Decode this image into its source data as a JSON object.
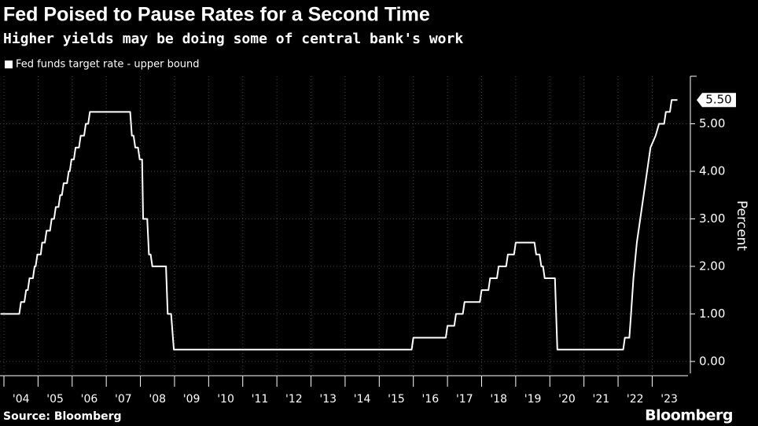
{
  "chart_data": {
    "type": "line",
    "title": "Fed Poised to Pause Rates for a Second Time",
    "subtitle": "Higher yields may be doing some of central bank's work",
    "y_label": "Percent",
    "source": "Source: Bloomberg",
    "brand": "Bloomberg",
    "end_label": "5.50",
    "x": [
      2003.9,
      2004.45,
      2004.5,
      2004.6,
      2004.65,
      2004.7,
      2004.75,
      2004.85,
      2004.9,
      2004.93,
      2004.98,
      2005.08,
      2005.12,
      2005.2,
      2005.25,
      2005.35,
      2005.4,
      2005.47,
      2005.52,
      2005.6,
      2005.65,
      2005.7,
      2005.75,
      2005.85,
      2005.9,
      2005.93,
      2005.98,
      2006.05,
      2006.1,
      2006.2,
      2006.25,
      2006.35,
      2006.4,
      2006.47,
      2006.52,
      2007.7,
      2007.75,
      2007.8,
      2007.85,
      2007.93,
      2007.98,
      2008.05,
      2008.08,
      2008.2,
      2008.25,
      2008.3,
      2008.35,
      2008.75,
      2008.8,
      2008.9,
      2008.98,
      2015.95,
      2016.0,
      2016.95,
      2017.0,
      2017.2,
      2017.25,
      2017.45,
      2017.5,
      2017.95,
      2018.0,
      2018.2,
      2018.25,
      2018.45,
      2018.5,
      2018.72,
      2018.77,
      2018.95,
      2019.0,
      2019.55,
      2019.6,
      2019.7,
      2019.75,
      2019.8,
      2019.85,
      2020.15,
      2020.22,
      2022.15,
      2022.2,
      2022.33,
      2022.38,
      2022.45,
      2022.55,
      2022.7,
      2022.85,
      2022.95,
      2023.1,
      2023.2,
      2023.35,
      2023.4,
      2023.52,
      2023.57,
      2023.74
    ],
    "series": [
      {
        "name": "Fed funds target rate - upper bound",
        "color": "#ffffff",
        "values": [
          1,
          1,
          1.25,
          1.25,
          1.5,
          1.5,
          1.75,
          1.75,
          2,
          2,
          2.25,
          2.25,
          2.5,
          2.5,
          2.75,
          2.75,
          3,
          3,
          3.25,
          3.25,
          3.5,
          3.5,
          3.75,
          3.75,
          4,
          4,
          4.25,
          4.25,
          4.5,
          4.5,
          4.75,
          4.75,
          5,
          5,
          5.25,
          5.25,
          4.75,
          4.75,
          4.5,
          4.5,
          4.25,
          4.25,
          3,
          3,
          2.25,
          2.25,
          2,
          2,
          1,
          1,
          0.25,
          0.25,
          0.5,
          0.5,
          0.75,
          0.75,
          1,
          1,
          1.25,
          1.25,
          1.5,
          1.5,
          1.75,
          1.75,
          2,
          2,
          2.25,
          2.25,
          2.5,
          2.5,
          2.25,
          2.25,
          2,
          2,
          1.75,
          1.75,
          0.25,
          0.25,
          0.5,
          0.5,
          1,
          1.75,
          2.5,
          3.25,
          4,
          4.5,
          4.75,
          5,
          5,
          5.25,
          5.25,
          5.5,
          5.5
        ]
      }
    ],
    "xlim": [
      2003.885,
      2024.05
    ],
    "xticks": [
      {
        "value": 2004,
        "label": "'04"
      },
      {
        "value": 2005,
        "label": "'05"
      },
      {
        "value": 2006,
        "label": "'06"
      },
      {
        "value": 2007,
        "label": "'07"
      },
      {
        "value": 2008,
        "label": "'08"
      },
      {
        "value": 2009,
        "label": "'09"
      },
      {
        "value": 2010,
        "label": "'10"
      },
      {
        "value": 2011,
        "label": "'11"
      },
      {
        "value": 2012,
        "label": "'12"
      },
      {
        "value": 2013,
        "label": "'13"
      },
      {
        "value": 2014,
        "label": "'14"
      },
      {
        "value": 2015,
        "label": "'15"
      },
      {
        "value": 2016,
        "label": "'16"
      },
      {
        "value": 2017,
        "label": "'17"
      },
      {
        "value": 2018,
        "label": "'18"
      },
      {
        "value": 2019,
        "label": "'19"
      },
      {
        "value": 2020,
        "label": "'20"
      },
      {
        "value": 2021,
        "label": "'21"
      },
      {
        "value": 2022,
        "label": "'22"
      },
      {
        "value": 2023,
        "label": "'23"
      }
    ],
    "ylim": [
      -0.25,
      6
    ],
    "yticks": [
      {
        "value": 0,
        "label": "0.00"
      },
      {
        "value": 1,
        "label": "1.00"
      },
      {
        "value": 2,
        "label": "2.00"
      },
      {
        "value": 3,
        "label": "3.00"
      },
      {
        "value": 4,
        "label": "4.00"
      },
      {
        "value": 5,
        "label": "5.00"
      }
    ],
    "grid": true,
    "legend": "top-left"
  }
}
